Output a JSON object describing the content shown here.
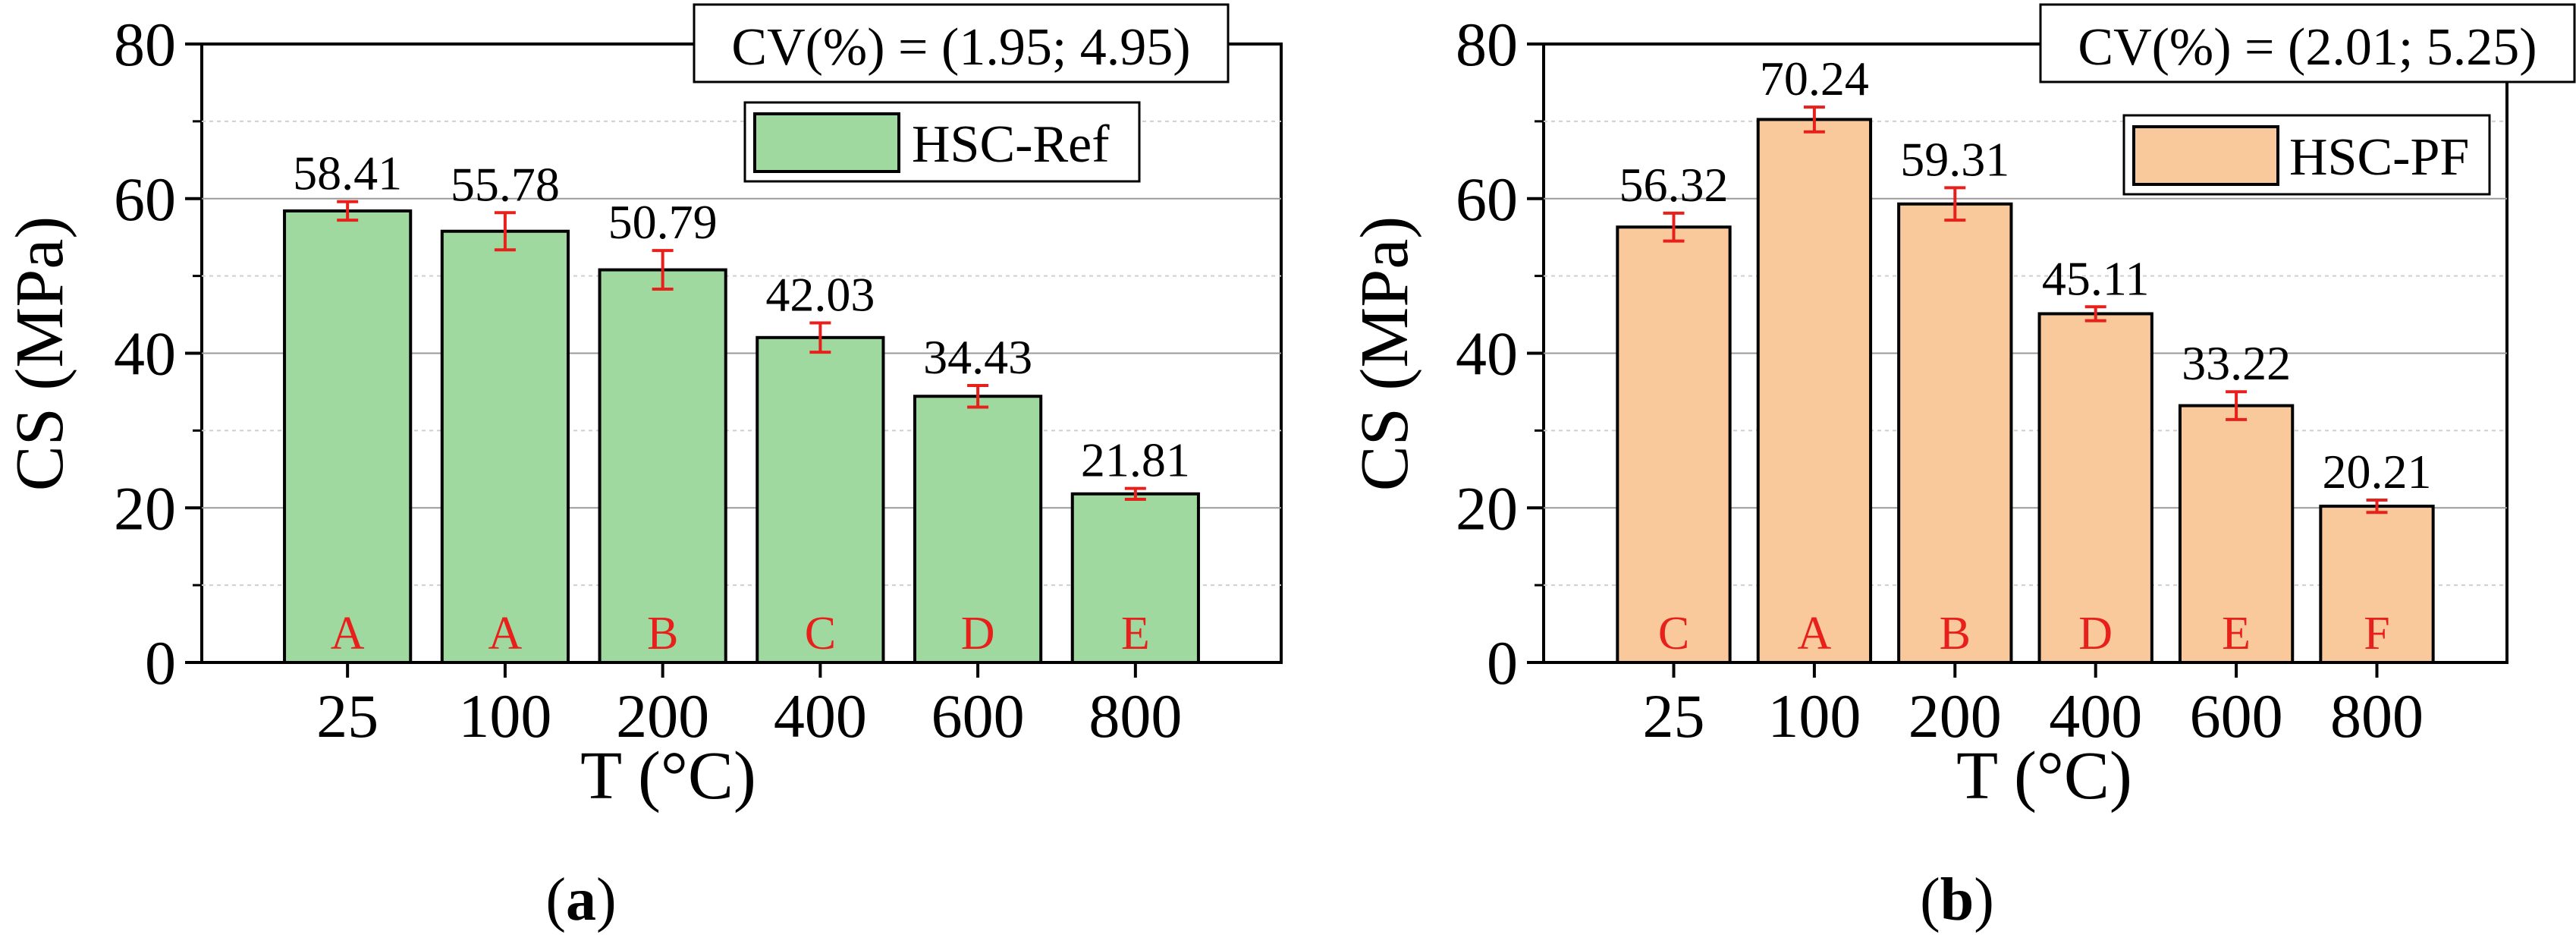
{
  "chart_data": [
    {
      "type": "bar",
      "panel_label": "a",
      "series_name": "HSC-Ref",
      "categories": [
        "25",
        "100",
        "200",
        "400",
        "600",
        "800"
      ],
      "values": [
        58.41,
        55.78,
        50.79,
        42.03,
        34.43,
        21.81
      ],
      "value_labels": [
        "58.41",
        "55.78",
        "50.79",
        "42.03",
        "34.43",
        "21.81"
      ],
      "error": [
        1.2,
        2.4,
        2.5,
        1.9,
        1.4,
        0.7
      ],
      "groups": [
        "A",
        "A",
        "B",
        "C",
        "D",
        "E"
      ],
      "xlabel": "T (°C)",
      "ylabel": "CS (MPa)",
      "ylim": [
        0,
        80
      ],
      "yticks": [
        "0",
        "20",
        "40",
        "60",
        "80"
      ],
      "cv_note": "CV(%) = (1.95; 4.95)",
      "color": "#a0d99f"
    },
    {
      "type": "bar",
      "panel_label": "b",
      "series_name": "HSC-PF",
      "categories": [
        "25",
        "100",
        "200",
        "400",
        "600",
        "800"
      ],
      "values": [
        56.32,
        70.24,
        59.31,
        45.11,
        33.22,
        20.21
      ],
      "value_labels": [
        "56.32",
        "70.24",
        "59.31",
        "45.11",
        "33.22",
        "20.21"
      ],
      "error": [
        1.8,
        1.6,
        2.1,
        0.9,
        1.8,
        0.8
      ],
      "groups": [
        "C",
        "A",
        "B",
        "D",
        "E",
        "F"
      ],
      "xlabel": "T (°C)",
      "ylabel": "CS (MPa)",
      "ylim": [
        0,
        80
      ],
      "yticks": [
        "0",
        "20",
        "40",
        "60",
        "80"
      ],
      "cv_note": "CV(%) = (2.01; 5.25)",
      "color": "#f9c89b"
    }
  ],
  "style": {
    "error_color": "#e8201b",
    "group_color": "#e8201b",
    "grid_color": "#9a9a9a"
  }
}
